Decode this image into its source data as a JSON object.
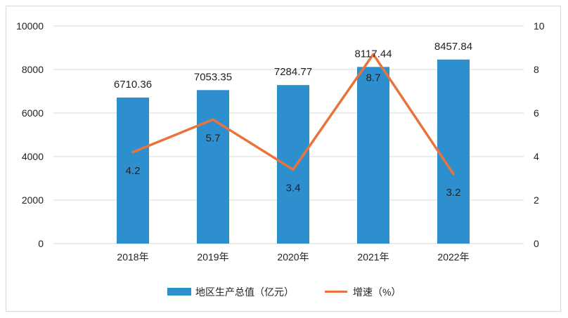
{
  "chart_data": {
    "type": "bar+line",
    "categories": [
      "2018年",
      "2019年",
      "2020年",
      "2021年",
      "2022年"
    ],
    "series": [
      {
        "name": "地区生产总值（亿元）",
        "type": "bar",
        "axis": "left",
        "values": [
          6710.36,
          7053.35,
          7284.77,
          8117.44,
          8457.84
        ],
        "labels": [
          "6710.36",
          "7053.35",
          "7284.77",
          "8117.44",
          "8457.84"
        ],
        "color": "#2e8fcf"
      },
      {
        "name": "增速（%）",
        "type": "line",
        "axis": "right",
        "values": [
          4.2,
          5.7,
          3.4,
          8.7,
          3.2
        ],
        "labels": [
          "4.2",
          "5.7",
          "3.4",
          "8.7",
          "3.2"
        ],
        "color": "#e8743b"
      }
    ],
    "y_left": {
      "min": 0,
      "max": 10000,
      "ticks": [
        "0",
        "2000",
        "4000",
        "6000",
        "8000",
        "10000"
      ]
    },
    "y_right": {
      "min": 0,
      "max": 10,
      "ticks": [
        "0",
        "2",
        "4",
        "6",
        "8",
        "10"
      ]
    },
    "grid": true,
    "legend_position": "bottom-center"
  }
}
